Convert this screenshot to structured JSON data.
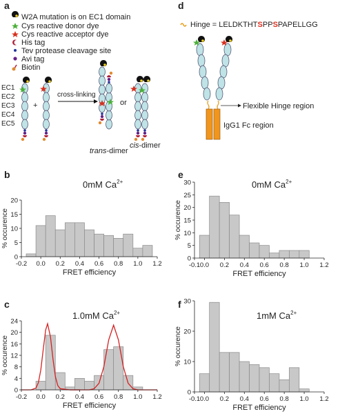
{
  "panel_labels": [
    "a",
    "b",
    "c",
    "d",
    "e",
    "f"
  ],
  "diagram_a": {
    "legend": [
      "W2A mutation is on EC1 domain",
      "Cys reactive donor dye",
      "Cys reactive acceptor dye",
      "His tag",
      "Tev protease cleavage site",
      "Avi tag",
      "Biotin"
    ],
    "domains": [
      "EC1",
      "EC2",
      "EC3",
      "EC4",
      "EC5"
    ],
    "plus": "+",
    "arrow_label": "cross-linking",
    "or": "or",
    "trans_prefix": "trans",
    "trans_suffix": "-dimer",
    "cis_prefix": "cis",
    "cis_suffix": "-dimer"
  },
  "diagram_d": {
    "hinge_prefix": "Hinge = ",
    "hinge_parts": [
      "LELDKTHT",
      "S",
      "PP",
      "S",
      "PAPELLGG"
    ],
    "hinge_label": "Flexible Hinge region",
    "fc_label": "IgG1 Fc region"
  },
  "chart_data": [
    {
      "type": "histogram",
      "title": "0mM Ca",
      "title_sup": "2+",
      "xlabel": "FRET efficiency",
      "ylabel": "% occurence",
      "bins": [
        -0.15,
        -0.05,
        0.05,
        0.15,
        0.25,
        0.35,
        0.45,
        0.55,
        0.65,
        0.75,
        0.85,
        0.95,
        1.05,
        1.15
      ],
      "values": [
        1,
        11,
        14.5,
        9.5,
        12,
        12,
        9.5,
        8,
        7.5,
        6.5,
        8,
        3,
        4
      ],
      "color": "#c8c8c8",
      "xlim": [
        -0.2,
        1.2
      ],
      "xticks": [
        -0.2,
        {
          "value": 0,
          "label": "0.0"
        },
        0.2,
        0.4,
        0.6,
        0.8,
        {
          "value": 1,
          "label": "1.0"
        },
        1.2
      ],
      "ylim": [
        0,
        20
      ],
      "yticks": [
        0,
        5,
        10,
        15,
        20
      ]
    },
    {
      "type": "histogram",
      "title": "1.0mM Ca",
      "title_sup": "2+",
      "xlabel": "FRET efficiency",
      "ylabel": "% occurence",
      "bins": [
        -0.05,
        0.05,
        0.15,
        0.25,
        0.35,
        0.45,
        0.55,
        0.65,
        0.75,
        0.85,
        0.95,
        1.05
      ],
      "values": [
        3,
        19,
        6,
        1,
        4,
        3,
        5,
        14,
        15,
        5,
        1
      ],
      "color": "#c8c8c8",
      "curve_color": "#d62020",
      "curves": [
        {
          "x": [
            -0.2,
            -0.1,
            -0.05,
            -0.025,
            0,
            0.025,
            0.05,
            0.07,
            0.1,
            0.125,
            0.15,
            0.175,
            0.2,
            0.3,
            0.4
          ],
          "y": [
            0,
            0,
            0.6,
            2.5,
            6.9,
            14,
            20.8,
            23,
            18.4,
            10.9,
            4.7,
            1.5,
            0.4,
            0,
            0
          ]
        },
        {
          "x": [
            0.3,
            0.45,
            0.5,
            0.55,
            0.6,
            0.65,
            0.7,
            0.75,
            0.8,
            0.85,
            0.9,
            0.95,
            1,
            1.05,
            1.2
          ],
          "y": [
            0,
            0,
            0,
            0.4,
            2.3,
            8.1,
            17.4,
            22.5,
            17.4,
            8.1,
            2.3,
            0.4,
            0,
            0,
            0
          ]
        }
      ],
      "xlim": [
        -0.2,
        1.2
      ],
      "xticks": [
        -0.2,
        {
          "value": 0,
          "label": "0.0"
        },
        0.2,
        0.4,
        0.6,
        0.8,
        {
          "value": 1,
          "label": "1.0"
        },
        1.2
      ],
      "ylim": [
        0,
        24
      ],
      "yticks": [
        0,
        4,
        8,
        12,
        16,
        20,
        24
      ]
    },
    {
      "type": "histogram",
      "title": "0mM Ca",
      "title_sup": "2+",
      "xlabel": "FRET efficiency",
      "ylabel": "% occurence",
      "bins": [
        -0.05,
        0.05,
        0.15,
        0.25,
        0.35,
        0.45,
        0.55,
        0.65,
        0.75,
        0.85,
        0.95,
        1.05
      ],
      "values": [
        9,
        24.5,
        22,
        17,
        9,
        6,
        5,
        2,
        3,
        3,
        3
      ],
      "color": "#c8c8c8",
      "xlim": [
        -0.1,
        1.2
      ],
      "xticks": [
        -0.1,
        {
          "value": 0,
          "label": "0.0"
        },
        0.2,
        0.4,
        0.6,
        0.8,
        {
          "value": 1,
          "label": "1.0"
        },
        1.2
      ],
      "ylim": [
        0,
        30
      ],
      "yticks": [
        0,
        5,
        10,
        15,
        20,
        25,
        30
      ]
    },
    {
      "type": "histogram",
      "title": "1mM Ca",
      "title_sup": "2+",
      "xlabel": "FRET efficiency",
      "ylabel": "% occurence",
      "bins": [
        -0.05,
        0.05,
        0.15,
        0.25,
        0.35,
        0.45,
        0.55,
        0.65,
        0.75,
        0.85,
        0.95,
        1.05
      ],
      "values": [
        6,
        29.5,
        13,
        13,
        10,
        9,
        8,
        6,
        4,
        8,
        1
      ],
      "color": "#c8c8c8",
      "xlim": [
        -0.1,
        1.2
      ],
      "xticks": [
        -0.1,
        {
          "value": 0,
          "label": "0.0"
        },
        0.2,
        0.4,
        0.6,
        0.8,
        {
          "value": 1,
          "label": "1.0"
        },
        1.2
      ],
      "ylim": [
        0,
        30
      ],
      "yticks": [
        0,
        10,
        20,
        30
      ]
    }
  ]
}
